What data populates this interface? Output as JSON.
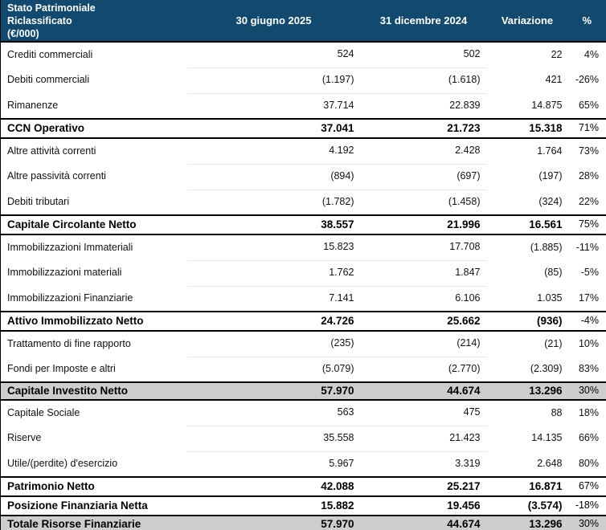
{
  "header": {
    "title": "Stato Patrimoniale\nRiclassificato\n(€/000)",
    "columns": [
      "30 giugno 2025",
      "31 dicembre 2024",
      "Variazione",
      "%"
    ]
  },
  "rows": [
    {
      "type": "normal",
      "label": "Crediti commerciali",
      "giu2025": "524",
      "dic2024": "502",
      "variazione": "22",
      "pct": "4%"
    },
    {
      "type": "normal",
      "label": "Debiti commerciali",
      "giu2025": "(1.197)",
      "dic2024": "(1.618)",
      "variazione": "421",
      "pct": "-26%"
    },
    {
      "type": "normal",
      "label": "Rimanenze",
      "giu2025": "37.714",
      "dic2024": "22.839",
      "variazione": "14.875",
      "pct": "65%"
    },
    {
      "type": "subtotal",
      "label": "CCN Operativo",
      "giu2025": "37.041",
      "dic2024": "21.723",
      "variazione": "15.318",
      "pct": "71%"
    },
    {
      "type": "normal",
      "label": "Altre attività correnti",
      "giu2025": "4.192",
      "dic2024": "2.428",
      "variazione": "1.764",
      "pct": "73%"
    },
    {
      "type": "normal",
      "label": "Altre passività correnti",
      "giu2025": "(894)",
      "dic2024": "(697)",
      "variazione": "(197)",
      "pct": "28%"
    },
    {
      "type": "normal",
      "label": "Debiti tributari",
      "giu2025": "(1.782)",
      "dic2024": "(1.458)",
      "variazione": "(324)",
      "pct": "22%"
    },
    {
      "type": "subtotal",
      "label": "Capitale Circolante Netto",
      "giu2025": "38.557",
      "dic2024": "21.996",
      "variazione": "16.561",
      "pct": "75%"
    },
    {
      "type": "normal",
      "label": "Immobilizzazioni Immateriali",
      "giu2025": "15.823",
      "dic2024": "17.708",
      "variazione": "(1.885)",
      "pct": "-11%"
    },
    {
      "type": "normal",
      "label": "Immobilizzazioni materiali",
      "giu2025": "1.762",
      "dic2024": "1.847",
      "variazione": "(85)",
      "pct": "-5%"
    },
    {
      "type": "normal",
      "label": "Immobilizzazioni Finanziarie",
      "giu2025": "7.141",
      "dic2024": "6.106",
      "variazione": "1.035",
      "pct": "17%"
    },
    {
      "type": "subtotal",
      "label": "Attivo Immobilizzato Netto",
      "giu2025": "24.726",
      "dic2024": "25.662",
      "variazione": "(936)",
      "pct": "-4%"
    },
    {
      "type": "normal",
      "label": "Trattamento di fine rapporto",
      "giu2025": "(235)",
      "dic2024": "(214)",
      "variazione": "(21)",
      "pct": "10%"
    },
    {
      "type": "normal",
      "label": "Fondi per Imposte e altri",
      "giu2025": "(5.079)",
      "dic2024": "(2.770)",
      "variazione": "(2.309)",
      "pct": "83%"
    },
    {
      "type": "total",
      "label": "Capitale Investito Netto",
      "giu2025": "57.970",
      "dic2024": "44.674",
      "variazione": "13.296",
      "pct": "30%"
    },
    {
      "type": "normal",
      "label": "Capitale Sociale",
      "giu2025": "563",
      "dic2024": "475",
      "variazione": "88",
      "pct": "18%"
    },
    {
      "type": "normal",
      "label": "Riserve",
      "giu2025": "35.558",
      "dic2024": "21.423",
      "variazione": "14.135",
      "pct": "66%"
    },
    {
      "type": "normal",
      "label": "Utile/(perdite) d'esercizio",
      "giu2025": "5.967",
      "dic2024": "3.319",
      "variazione": "2.648",
      "pct": "80%"
    },
    {
      "type": "subtotal",
      "label": "Patrimonio Netto",
      "giu2025": "42.088",
      "dic2024": "25.217",
      "variazione": "16.871",
      "pct": "67%"
    },
    {
      "type": "subtotal",
      "label": "Posizione Finanziaria Netta",
      "giu2025": "15.882",
      "dic2024": "19.456",
      "variazione": "(3.574)",
      "pct": "-18%"
    },
    {
      "type": "total",
      "label": "Totale Risorse Finanziarie",
      "giu2025": "57.970",
      "dic2024": "44.674",
      "variazione": "13.296",
      "pct": "30%"
    }
  ],
  "colors": {
    "header_bg": "#12496E",
    "header_text": "#FFFFFF",
    "total_row_bg": "#CECECE",
    "rule_black": "#000000",
    "faint_row_line": "#E8E8E8"
  }
}
